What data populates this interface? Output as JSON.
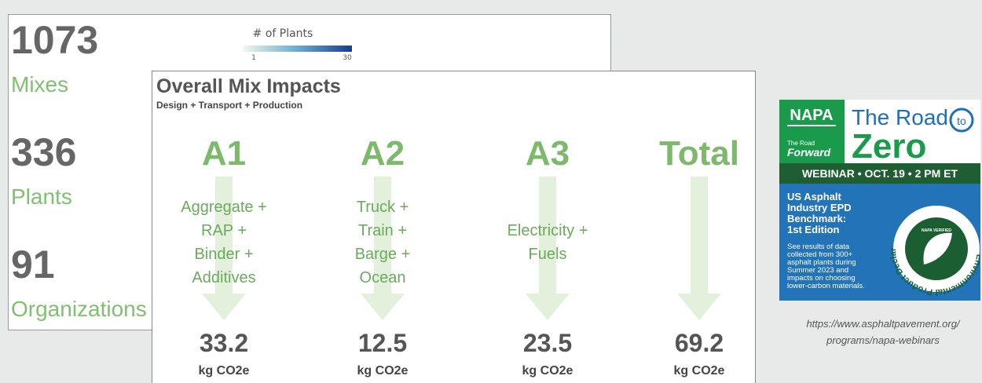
{
  "back_slide": {
    "stats": [
      {
        "number": "1073",
        "label": "Mixes"
      },
      {
        "number": "336",
        "label": "Plants"
      },
      {
        "number": "91",
        "label": "Organizations"
      }
    ],
    "legend": {
      "title": "# of Plants",
      "min": "1",
      "max": "30"
    }
  },
  "front_slide": {
    "title": "Overall Mix Impacts",
    "subtitle": "Design + Transport + Production",
    "columns": [
      {
        "heading": "A1",
        "items": [
          "Aggregate +",
          "RAP +",
          "Binder +",
          "Additives"
        ],
        "value": "33.2",
        "unit": "kg CO2e"
      },
      {
        "heading": "A2",
        "items": [
          "Truck +",
          "Train +",
          "Barge +",
          "Ocean"
        ],
        "value": "12.5",
        "unit": "kg CO2e"
      },
      {
        "heading": "A3",
        "items": [
          "Electricity +",
          "Fuels"
        ],
        "value": "23.5",
        "unit": "kg CO2e"
      },
      {
        "heading": "Total",
        "items": [],
        "value": "69.2",
        "unit": "kg CO2e"
      }
    ]
  },
  "webinar": {
    "logo": "NAPA",
    "logo_sub": [
      "The Road",
      "Forward"
    ],
    "title_top": "The Road",
    "title_to": "to",
    "title_main": "Zero",
    "date": "WEBINAR • OCT. 19 • 2 PM ET",
    "heading": [
      "US Asphalt",
      "Industry EPD",
      "Benchmark:",
      "1st Edition"
    ],
    "body": [
      "See results of data",
      "collected from 300+",
      "asphalt plants during",
      "Summer 2023 and",
      "impacts on choosing",
      "lower-carbon materials."
    ],
    "badge": "Environmental Product Declaration",
    "badge_sub": "NAPA VERIFIED"
  },
  "caption": [
    "https://www.asphaltpavement.org/",
    "programs/napa-webinars"
  ]
}
